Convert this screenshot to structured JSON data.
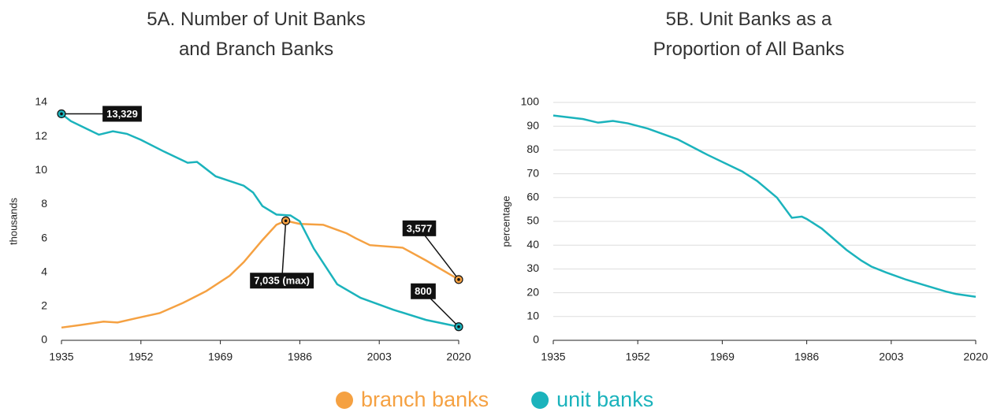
{
  "chart_data": [
    {
      "type": "line",
      "title": "5A. Number of Unit Banks and Branch Banks",
      "ylabel": "thousands",
      "xlim": [
        1935,
        2020
      ],
      "xticks": [
        1935,
        1952,
        1969,
        1986,
        2003,
        2020
      ],
      "ylim": [
        0,
        14
      ],
      "yticks": [
        0,
        2,
        4,
        6,
        8,
        10,
        12,
        14
      ],
      "grid": false,
      "series": [
        {
          "name": "branch banks",
          "color": "#f5a142",
          "x": [
            1935,
            1939,
            1944,
            1947,
            1951,
            1956,
            1961,
            1966,
            1971,
            1974,
            1978,
            1981,
            1983,
            1986,
            1991,
            1994,
            1996,
            1998,
            2001,
            2008,
            2013,
            2020
          ],
          "values": [
            0.75,
            0.9,
            1.1,
            1.05,
            1.3,
            1.6,
            2.2,
            2.9,
            3.8,
            4.6,
            5.9,
            6.8,
            7.035,
            6.85,
            6.8,
            6.5,
            6.3,
            6.0,
            5.6,
            5.45,
            4.7,
            3.577
          ]
        },
        {
          "name": "unit banks",
          "color": "#1bb3bc",
          "x": [
            1935,
            1937,
            1940,
            1943,
            1946,
            1949,
            1952,
            1957,
            1962,
            1964,
            1968,
            1974,
            1976,
            1978,
            1981,
            1984,
            1986,
            1989,
            1994,
            1999,
            2003,
            2006,
            2013,
            2020
          ],
          "values": [
            13.329,
            12.9,
            12.5,
            12.1,
            12.3,
            12.15,
            11.8,
            11.1,
            10.45,
            10.5,
            9.65,
            9.1,
            8.7,
            7.9,
            7.4,
            7.35,
            7.0,
            5.4,
            3.3,
            2.5,
            2.1,
            1.8,
            1.2,
            0.8
          ]
        }
      ],
      "annotations": [
        {
          "label": "13,329",
          "x": 1935,
          "y": 13.329
        },
        {
          "label": "7,035 (max)",
          "x": 1983,
          "y": 7.035
        },
        {
          "label": "3,577",
          "x": 2020,
          "y": 3.577
        },
        {
          "label": "800",
          "x": 2020,
          "y": 0.8
        }
      ]
    },
    {
      "type": "line",
      "title": "5B. Unit Banks as a Proportion of All Banks",
      "ylabel": "percentage",
      "xlim": [
        1935,
        2020
      ],
      "xticks": [
        1935,
        1952,
        1969,
        1986,
        2003,
        2020
      ],
      "ylim": [
        0,
        100
      ],
      "yticks": [
        0,
        10,
        20,
        30,
        40,
        50,
        60,
        70,
        80,
        90,
        100
      ],
      "grid": true,
      "series": [
        {
          "name": "unit banks",
          "color": "#1bb3bc",
          "x": [
            1935,
            1941,
            1944,
            1947,
            1950,
            1954,
            1960,
            1966,
            1973,
            1976,
            1980,
            1983,
            1985,
            1986,
            1989,
            1994,
            1997,
            1999,
            2002,
            2006,
            2010,
            2014,
            2016,
            2020
          ],
          "values": [
            94.5,
            93,
            91.5,
            92.2,
            91.2,
            89,
            84.5,
            78,
            71,
            67,
            60,
            51.5,
            52,
            51,
            47,
            38,
            33.5,
            31,
            28.5,
            25.5,
            23,
            20.5,
            19.5,
            18.3
          ]
        }
      ]
    }
  ]
}
